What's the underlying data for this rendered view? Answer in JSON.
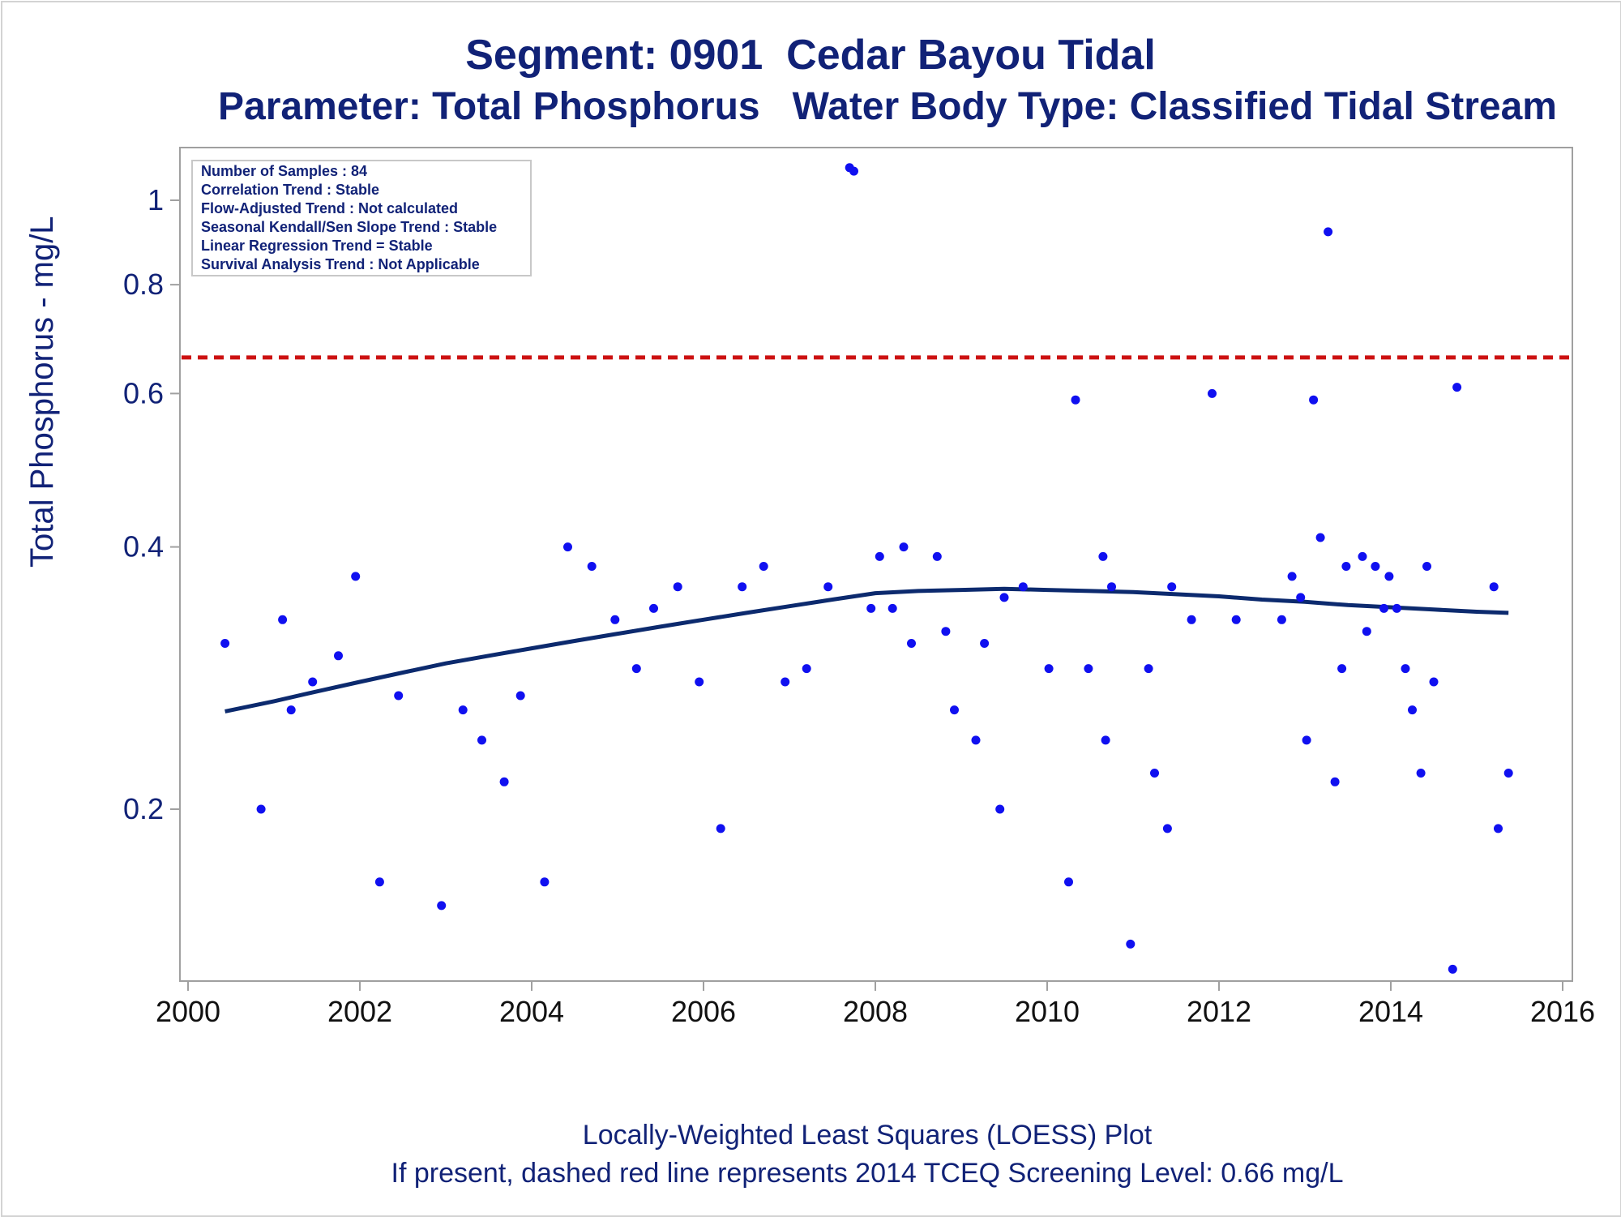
{
  "title": "Segment: 0901  Cedar Bayou Tidal",
  "subtitle": "Parameter: Total Phosphorus   Water Body Type: Classified Tidal Stream",
  "footnote1": "Locally-Weighted Least Squares (LOESS) Plot",
  "footnote2": "If present, dashed red line represents 2014 TCEQ Screening Level: 0.66 mg/L",
  "stats": [
    "Number of Samples : 84",
    "Correlation Trend : Stable",
    "Flow-Adjusted Trend : Not calculated",
    "Seasonal Kendall/Sen Slope Trend : Stable",
    "Linear Regression Trend = Stable",
    "Survival Analysis Trend : Not Applicable"
  ],
  "colors": {
    "title": "#112277",
    "points": "#1010f0",
    "loess": "#0c2a6e",
    "screening": "#cc1111",
    "axis": "#a0a0a0"
  },
  "chart_data": {
    "type": "scatter",
    "xlabel": "",
    "ylabel": "Total Phosphorus - mg/L",
    "xlim": [
      2000,
      2016
    ],
    "ylim": [
      0.125,
      1.13
    ],
    "yscale": "log",
    "xticks": [
      2000,
      2002,
      2004,
      2006,
      2008,
      2010,
      2012,
      2014,
      2016
    ],
    "yticks": [
      0.2,
      0.4,
      0.6,
      0.8,
      1
    ],
    "ytick_labels": [
      "0.2",
      "0.4",
      "0.6",
      "0.8",
      "1"
    ],
    "screening_level": 0.66,
    "points": [
      [
        2000.43,
        0.31
      ],
      [
        2000.85,
        0.2
      ],
      [
        2001.1,
        0.33
      ],
      [
        2001.2,
        0.26
      ],
      [
        2001.45,
        0.28
      ],
      [
        2001.75,
        0.3
      ],
      [
        2001.95,
        0.37
      ],
      [
        2002.23,
        0.165
      ],
      [
        2002.45,
        0.27
      ],
      [
        2002.95,
        0.155
      ],
      [
        2003.2,
        0.26
      ],
      [
        2003.42,
        0.24
      ],
      [
        2003.68,
        0.215
      ],
      [
        2003.87,
        0.27
      ],
      [
        2004.15,
        0.165
      ],
      [
        2004.42,
        0.4
      ],
      [
        2004.7,
        0.38
      ],
      [
        2004.97,
        0.33
      ],
      [
        2005.22,
        0.29
      ],
      [
        2005.42,
        0.34
      ],
      [
        2005.7,
        0.36
      ],
      [
        2005.95,
        0.28
      ],
      [
        2006.2,
        0.19
      ],
      [
        2006.45,
        0.36
      ],
      [
        2006.7,
        0.38
      ],
      [
        2006.95,
        0.28
      ],
      [
        2007.2,
        0.29
      ],
      [
        2007.45,
        0.36
      ],
      [
        2007.7,
        1.09
      ],
      [
        2007.75,
        1.08
      ],
      [
        2007.95,
        0.34
      ],
      [
        2008.05,
        0.39
      ],
      [
        2008.2,
        0.34
      ],
      [
        2008.33,
        0.4
      ],
      [
        2008.42,
        0.31
      ],
      [
        2008.72,
        0.39
      ],
      [
        2008.82,
        0.32
      ],
      [
        2008.92,
        0.26
      ],
      [
        2009.17,
        0.24
      ],
      [
        2009.27,
        0.31
      ],
      [
        2009.45,
        0.2
      ],
      [
        2009.5,
        0.35
      ],
      [
        2009.72,
        0.36
      ],
      [
        2010.02,
        0.29
      ],
      [
        2010.25,
        0.165
      ],
      [
        2010.33,
        0.59
      ],
      [
        2010.48,
        0.29
      ],
      [
        2010.65,
        0.39
      ],
      [
        2010.68,
        0.24
      ],
      [
        2010.75,
        0.36
      ],
      [
        2010.97,
        0.14
      ],
      [
        2011.18,
        0.29
      ],
      [
        2011.25,
        0.22
      ],
      [
        2011.4,
        0.19
      ],
      [
        2011.45,
        0.36
      ],
      [
        2011.68,
        0.33
      ],
      [
        2011.92,
        0.6
      ],
      [
        2012.2,
        0.33
      ],
      [
        2012.73,
        0.33
      ],
      [
        2012.85,
        0.37
      ],
      [
        2012.95,
        0.35
      ],
      [
        2013.02,
        0.24
      ],
      [
        2013.1,
        0.59
      ],
      [
        2013.18,
        0.41
      ],
      [
        2013.27,
        0.92
      ],
      [
        2013.35,
        0.215
      ],
      [
        2013.43,
        0.29
      ],
      [
        2013.48,
        0.38
      ],
      [
        2013.67,
        0.39
      ],
      [
        2013.72,
        0.32
      ],
      [
        2013.82,
        0.38
      ],
      [
        2013.92,
        0.34
      ],
      [
        2013.98,
        0.37
      ],
      [
        2014.07,
        0.34
      ],
      [
        2014.17,
        0.29
      ],
      [
        2014.25,
        0.26
      ],
      [
        2014.35,
        0.22
      ],
      [
        2014.42,
        0.38
      ],
      [
        2014.5,
        0.28
      ],
      [
        2014.72,
        0.131
      ],
      [
        2014.77,
        0.61
      ],
      [
        2015.2,
        0.36
      ],
      [
        2015.25,
        0.19
      ],
      [
        2015.37,
        0.22
      ]
    ],
    "loess": {
      "x": [
        2000.43,
        2001,
        2001.5,
        2002,
        2002.5,
        2003,
        2003.5,
        2004,
        2004.5,
        2005,
        2005.5,
        2006,
        2006.5,
        2007,
        2007.5,
        2008,
        2008.5,
        2009,
        2009.5,
        2010,
        2010.5,
        2011,
        2011.5,
        2012,
        2012.5,
        2013,
        2013.5,
        2014,
        2014.5,
        2015,
        2015.37
      ],
      "y": [
        0.259,
        0.266,
        0.273,
        0.28,
        0.287,
        0.294,
        0.3,
        0.306,
        0.312,
        0.318,
        0.324,
        0.33,
        0.336,
        0.342,
        0.348,
        0.354,
        0.356,
        0.357,
        0.358,
        0.357,
        0.356,
        0.355,
        0.353,
        0.351,
        0.348,
        0.346,
        0.343,
        0.341,
        0.339,
        0.337,
        0.336
      ]
    }
  }
}
